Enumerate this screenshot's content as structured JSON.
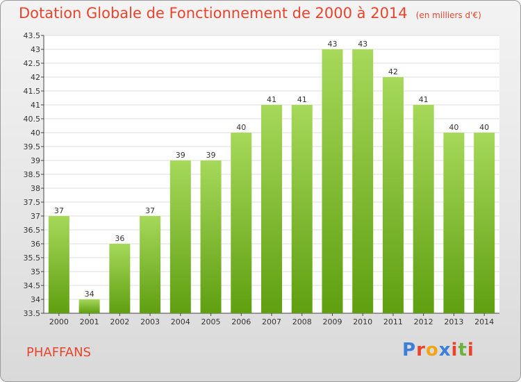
{
  "header": {
    "title": "Dotation Globale de Fonctionnement de 2000 à 2014",
    "subtitle": "(en milliers d'€)"
  },
  "commune": "PHAFFANS",
  "logo": {
    "text": "Proxiti",
    "letter_colors": [
      "#3d7fd6",
      "#e8442c",
      "#f2a516",
      "#3d7fd6",
      "#e8442c",
      "#6cb33e",
      "#e8442c"
    ]
  },
  "colors": {
    "bar_top": "#a6d85a",
    "bar_bottom": "#5f9f10",
    "title": "#e8442c"
  },
  "chart_data": {
    "type": "bar",
    "title": "Dotation Globale de Fonctionnement de 2000 à 2014",
    "subtitle": "(en milliers d'€)",
    "categories": [
      "2000",
      "2001",
      "2002",
      "2003",
      "2004",
      "2005",
      "2006",
      "2007",
      "2008",
      "2009",
      "2010",
      "2011",
      "2012",
      "2013",
      "2014"
    ],
    "values": [
      37,
      34,
      36,
      37,
      39,
      39,
      40,
      41,
      41,
      43,
      43,
      42,
      41,
      40,
      40
    ],
    "ylim": [
      33.5,
      43.5
    ],
    "yticks": [
      "33.5",
      "34",
      "34.5",
      "35",
      "35.5",
      "36",
      "36.5",
      "37",
      "37.5",
      "38",
      "38.5",
      "39",
      "39.5",
      "40",
      "40.5",
      "41",
      "41.5",
      "42",
      "42.5",
      "43",
      "43.5"
    ],
    "grid": true
  }
}
